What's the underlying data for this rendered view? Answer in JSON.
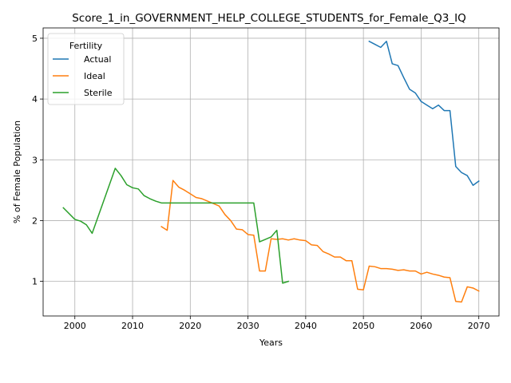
{
  "chart_data": {
    "type": "line",
    "title": "Score_1_in_GOVERNMENT_HELP_COLLEGE_STUDENTS_for_Female_Q3_IQ",
    "xlabel": "Years",
    "ylabel": "% of Female Population",
    "xlim": [
      1994.5,
      2073.5
    ],
    "ylim": [
      0.43,
      5.17
    ],
    "xticks": [
      2000,
      2010,
      2020,
      2030,
      2040,
      2050,
      2060,
      2070
    ],
    "yticks": [
      1,
      2,
      3,
      4,
      5
    ],
    "grid": true,
    "legend": {
      "title": "Fertility",
      "placement": "top-left"
    },
    "series": [
      {
        "name": "Actual",
        "color": "#1f77b4",
        "points": [
          [
            2051,
            4.95
          ],
          [
            2052,
            4.9
          ],
          [
            2053,
            4.85
          ],
          [
            2054,
            4.95
          ],
          [
            2055,
            4.58
          ],
          [
            2056,
            4.55
          ],
          [
            2057,
            4.35
          ],
          [
            2058,
            4.16
          ],
          [
            2059,
            4.1
          ],
          [
            2060,
            3.96
          ],
          [
            2061,
            3.9
          ],
          [
            2062,
            3.84
          ],
          [
            2063,
            3.9
          ],
          [
            2064,
            3.81
          ],
          [
            2065,
            3.81
          ],
          [
            2066,
            2.89
          ],
          [
            2067,
            2.79
          ],
          [
            2068,
            2.74
          ],
          [
            2069,
            2.58
          ],
          [
            2070,
            2.65
          ]
        ]
      },
      {
        "name": "Ideal",
        "color": "#ff7f0e",
        "points": [
          [
            2015,
            1.9
          ],
          [
            2016,
            1.84
          ],
          [
            2017,
            2.66
          ],
          [
            2018,
            2.55
          ],
          [
            2019,
            2.5
          ],
          [
            2020,
            2.44
          ],
          [
            2021,
            2.38
          ],
          [
            2022,
            2.36
          ],
          [
            2023,
            2.32
          ],
          [
            2024,
            2.28
          ],
          [
            2025,
            2.24
          ],
          [
            2026,
            2.1
          ],
          [
            2027,
            2.0
          ],
          [
            2028,
            1.86
          ],
          [
            2029,
            1.85
          ],
          [
            2030,
            1.77
          ],
          [
            2031,
            1.76
          ],
          [
            2032,
            1.17
          ],
          [
            2033,
            1.17
          ],
          [
            2034,
            1.7
          ],
          [
            2035,
            1.69
          ],
          [
            2036,
            1.7
          ],
          [
            2037,
            1.68
          ],
          [
            2038,
            1.7
          ],
          [
            2039,
            1.68
          ],
          [
            2040,
            1.67
          ],
          [
            2041,
            1.6
          ],
          [
            2042,
            1.59
          ],
          [
            2043,
            1.49
          ],
          [
            2044,
            1.45
          ],
          [
            2045,
            1.4
          ],
          [
            2046,
            1.4
          ],
          [
            2047,
            1.34
          ],
          [
            2048,
            1.34
          ],
          [
            2049,
            0.87
          ],
          [
            2050,
            0.86
          ],
          [
            2051,
            1.25
          ],
          [
            2052,
            1.24
          ],
          [
            2053,
            1.21
          ],
          [
            2054,
            1.21
          ],
          [
            2055,
            1.2
          ],
          [
            2056,
            1.18
          ],
          [
            2057,
            1.19
          ],
          [
            2058,
            1.17
          ],
          [
            2059,
            1.17
          ],
          [
            2060,
            1.12
          ],
          [
            2061,
            1.15
          ],
          [
            2062,
            1.12
          ],
          [
            2063,
            1.1
          ],
          [
            2064,
            1.07
          ],
          [
            2065,
            1.06
          ],
          [
            2066,
            0.67
          ],
          [
            2067,
            0.66
          ],
          [
            2068,
            0.91
          ],
          [
            2069,
            0.89
          ],
          [
            2070,
            0.84
          ]
        ]
      },
      {
        "name": "Sterile",
        "color": "#2ca02c",
        "points": [
          [
            1998,
            2.21
          ],
          [
            2000,
            2.02
          ],
          [
            2001,
            1.99
          ],
          [
            2002,
            1.93
          ],
          [
            2003,
            1.79
          ],
          [
            2007,
            2.86
          ],
          [
            2008,
            2.74
          ],
          [
            2009,
            2.59
          ],
          [
            2010,
            2.54
          ],
          [
            2011,
            2.52
          ],
          [
            2012,
            2.41
          ],
          [
            2013,
            2.36
          ],
          [
            2014,
            2.32
          ],
          [
            2015,
            2.29
          ],
          [
            2016,
            2.29
          ],
          [
            2031,
            2.29
          ],
          [
            2032,
            1.65
          ],
          [
            2033,
            1.69
          ],
          [
            2034,
            1.73
          ],
          [
            2035,
            1.84
          ],
          [
            2036,
            0.97
          ],
          [
            2037,
            1.0
          ]
        ]
      }
    ]
  }
}
